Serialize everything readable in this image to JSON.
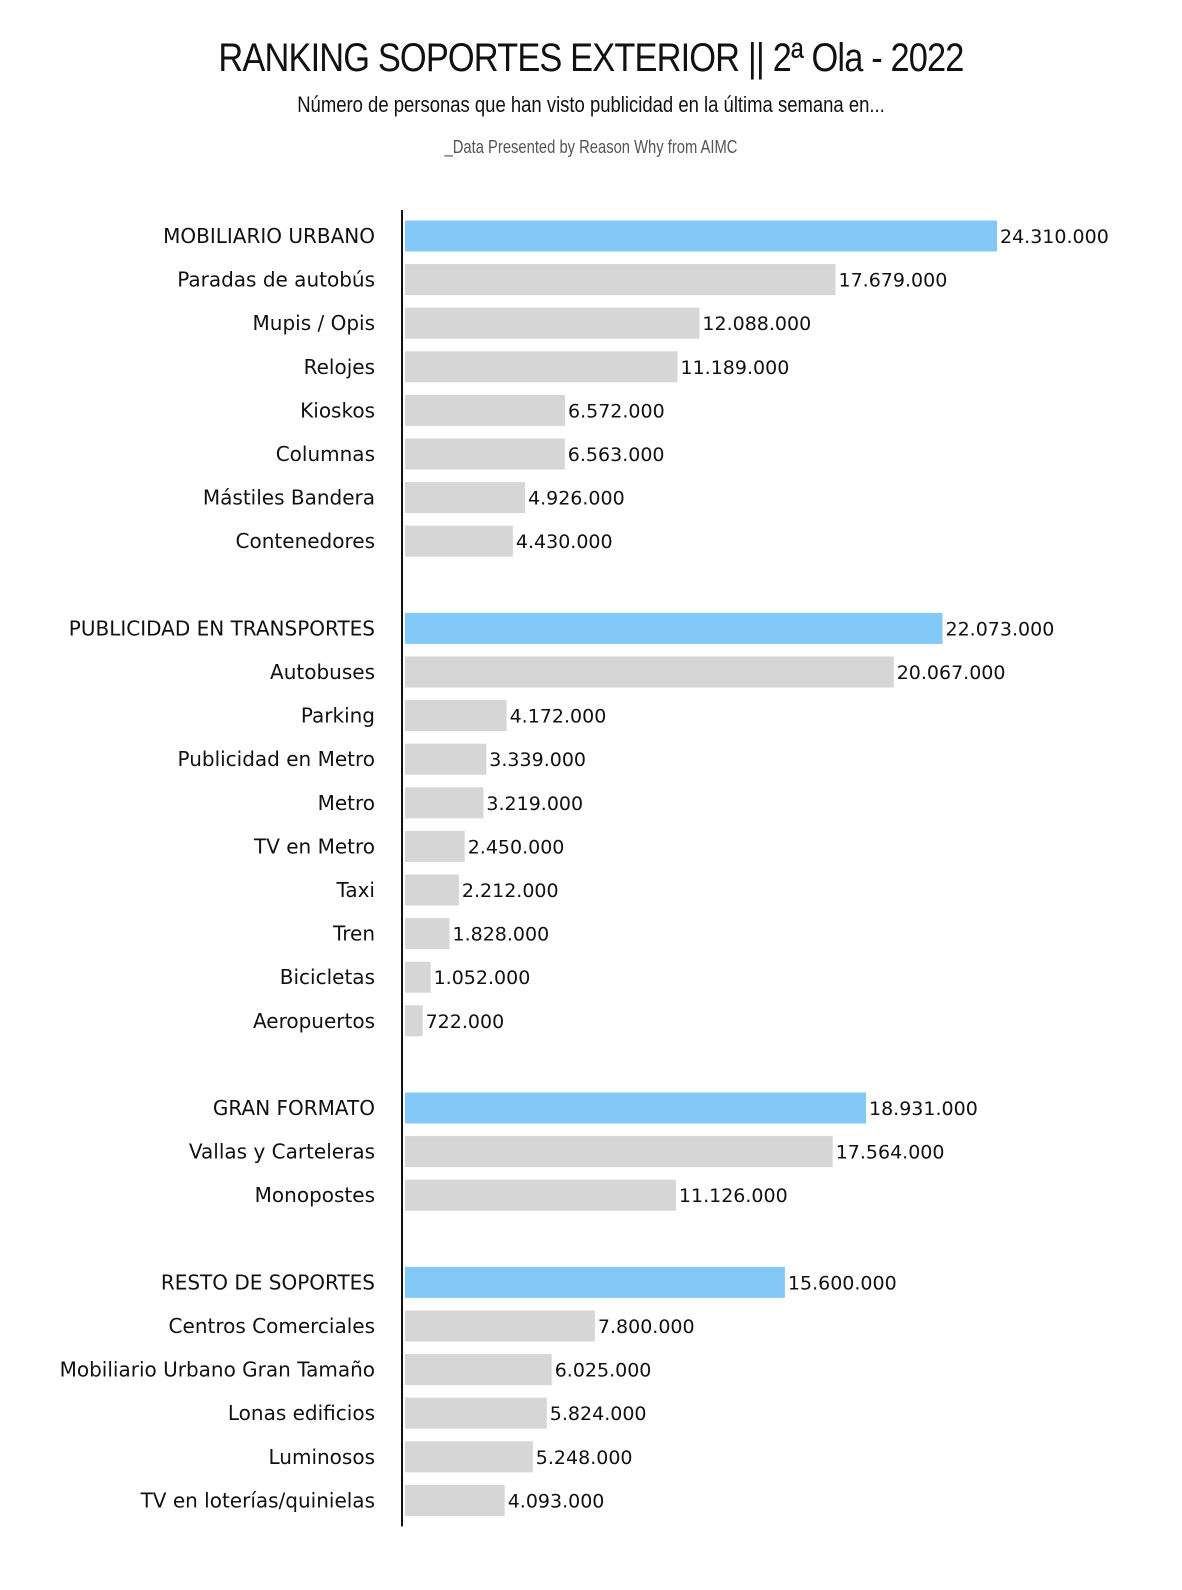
{
  "header": {
    "title": "RANKING SOPORTES EXTERIOR || 2ª Ola - 2022",
    "subtitle": "Número de personas que han visto publicidad en la última semana en...",
    "credit": "_Data Presented by Reason Why from AIMC"
  },
  "colors": {
    "group_bar": "#82c9f8",
    "item_bar": "#d6d6d6",
    "axis": "#111111",
    "text": "#111111"
  },
  "chart_data": {
    "type": "bar",
    "orientation": "horizontal",
    "title": "RANKING SOPORTES EXTERIOR || 2ª Ola - 2022",
    "subtitle": "Número de personas que han visto publicidad en la última semana en...",
    "xlim": [
      0,
      24310000
    ],
    "grid": false,
    "legend": "none",
    "groups": [
      {
        "name": "MOBILIARIO URBANO",
        "total": 24310000,
        "total_label": "24.310.000",
        "items": [
          {
            "label": "Paradas de autobús",
            "value": 17679000,
            "value_label": "17.679.000"
          },
          {
            "label": "Mupis / Opis",
            "value": 12088000,
            "value_label": "12.088.000"
          },
          {
            "label": "Relojes",
            "value": 11189000,
            "value_label": "11.189.000"
          },
          {
            "label": "Kioskos",
            "value": 6572000,
            "value_label": "6.572.000"
          },
          {
            "label": "Columnas",
            "value": 6563000,
            "value_label": "6.563.000"
          },
          {
            "label": "Mástiles Bandera",
            "value": 4926000,
            "value_label": "4.926.000"
          },
          {
            "label": "Contenedores",
            "value": 4430000,
            "value_label": "4.430.000"
          }
        ]
      },
      {
        "name": "PUBLICIDAD EN TRANSPORTES",
        "total": 22073000,
        "total_label": "22.073.000",
        "items": [
          {
            "label": "Autobuses",
            "value": 20067000,
            "value_label": "20.067.000"
          },
          {
            "label": "Parking",
            "value": 4172000,
            "value_label": "4.172.000"
          },
          {
            "label": "Publicidad en Metro",
            "value": 3339000,
            "value_label": "3.339.000"
          },
          {
            "label": "Metro",
            "value": 3219000,
            "value_label": "3.219.000"
          },
          {
            "label": "TV en Metro",
            "value": 2450000,
            "value_label": "2.450.000"
          },
          {
            "label": "Taxi",
            "value": 2212000,
            "value_label": "2.212.000"
          },
          {
            "label": "Tren",
            "value": 1828000,
            "value_label": "1.828.000"
          },
          {
            "label": "Bicicletas",
            "value": 1052000,
            "value_label": "1.052.000"
          },
          {
            "label": "Aeropuertos",
            "value": 722000,
            "value_label": "722.000"
          }
        ]
      },
      {
        "name": "GRAN FORMATO",
        "total": 18931000,
        "total_label": "18.931.000",
        "items": [
          {
            "label": "Vallas y Carteleras",
            "value": 17564000,
            "value_label": "17.564.000"
          },
          {
            "label": "Monopostes",
            "value": 11126000,
            "value_label": "11.126.000"
          }
        ]
      },
      {
        "name": "RESTO DE SOPORTES",
        "total": 15600000,
        "total_label": "15.600.000",
        "items": [
          {
            "label": "Centros Comerciales",
            "value": 7800000,
            "value_label": "7.800.000"
          },
          {
            "label": "Mobiliario Urbano Gran Tamaño",
            "value": 6025000,
            "value_label": "6.025.000"
          },
          {
            "label": "Lonas edificios",
            "value": 5824000,
            "value_label": "5.824.000"
          },
          {
            "label": "Luminosos",
            "value": 5248000,
            "value_label": "5.248.000"
          },
          {
            "label": "TV en loterías/quinielas",
            "value": 4093000,
            "value_label": "4.093.000"
          }
        ]
      }
    ]
  }
}
